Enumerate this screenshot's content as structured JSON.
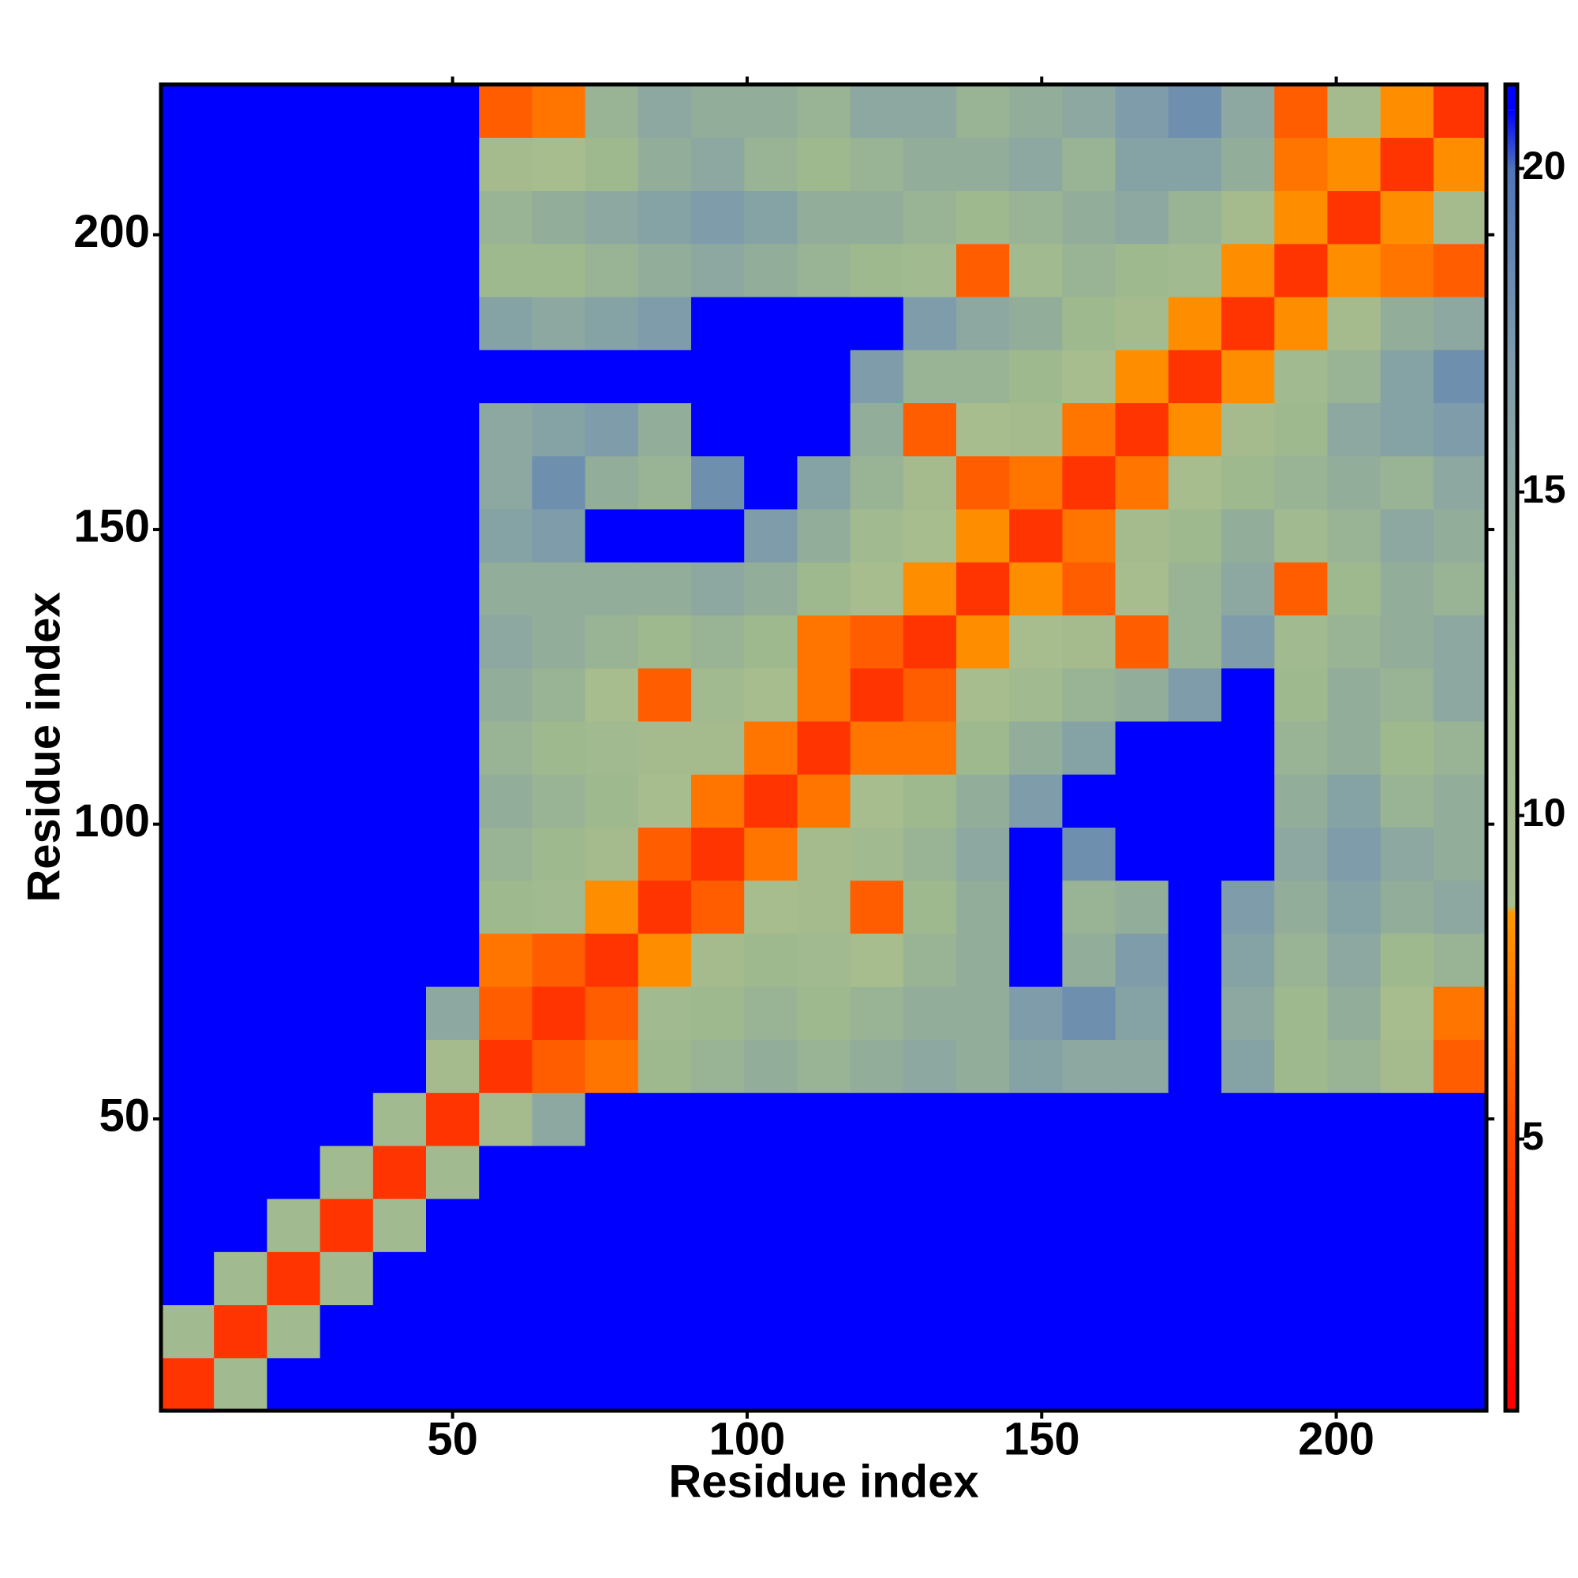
{
  "chart_data": {
    "type": "heatmap",
    "xlabel": "Residue index",
    "ylabel": "Residue index",
    "bins": [
      0.5,
      9.5,
      18.5,
      27.5,
      36.5,
      45.5,
      54.5,
      63.5,
      72.5,
      81.5,
      90.5,
      99.5,
      108.5,
      117.5,
      126.5,
      135.5,
      144.5,
      153.5,
      162.5,
      171.5,
      180.5,
      189.5,
      198.5,
      207.5,
      216.5,
      225.5
    ],
    "xlim": [
      0.5,
      225.5
    ],
    "ylim": [
      0.5,
      225.5
    ],
    "xticks": [
      50,
      100,
      150,
      200
    ],
    "yticks": [
      50,
      100,
      150,
      200
    ],
    "zlim": [
      0.8,
      21.3
    ],
    "zticks": [
      5,
      10,
      15,
      20
    ],
    "colorscale": [
      {
        "value": 1,
        "color": "#ff0000"
      },
      {
        "value": 5,
        "color": "#ff4500"
      },
      {
        "value": 8.5,
        "color": "#ff9900"
      },
      {
        "value": 8.6,
        "color": "#a9bd8e"
      },
      {
        "value": 12,
        "color": "#9fb98f"
      },
      {
        "value": 17,
        "color": "#7f9cab"
      },
      {
        "value": 20,
        "color": "#4f74b8"
      },
      {
        "value": 20.9,
        "color": "#0000ff"
      }
    ],
    "z": [
      [
        4,
        11,
        21,
        21,
        21,
        21,
        21,
        21,
        21,
        21,
        21,
        21,
        21,
        21,
        21,
        21,
        21,
        21,
        21,
        21,
        21,
        21,
        21,
        21,
        21
      ],
      [
        11,
        4,
        11,
        21,
        21,
        21,
        21,
        21,
        21,
        21,
        21,
        21,
        21,
        21,
        21,
        21,
        21,
        21,
        21,
        21,
        21,
        21,
        21,
        21,
        21
      ],
      [
        21,
        11,
        4,
        11,
        21,
        21,
        21,
        21,
        21,
        21,
        21,
        21,
        21,
        21,
        21,
        21,
        21,
        21,
        21,
        21,
        21,
        21,
        21,
        21,
        21
      ],
      [
        21,
        21,
        11,
        4,
        11,
        21,
        21,
        21,
        21,
        21,
        21,
        21,
        21,
        21,
        21,
        21,
        21,
        21,
        21,
        21,
        21,
        21,
        21,
        21,
        21
      ],
      [
        21,
        21,
        21,
        11,
        4,
        11,
        21,
        21,
        21,
        21,
        21,
        21,
        21,
        21,
        21,
        21,
        21,
        21,
        21,
        21,
        21,
        21,
        21,
        21,
        21
      ],
      [
        21,
        21,
        21,
        21,
        11,
        4,
        10,
        15,
        21,
        21,
        21,
        21,
        21,
        21,
        21,
        21,
        21,
        21,
        21,
        21,
        21,
        21,
        21,
        21,
        21
      ],
      [
        21,
        21,
        21,
        21,
        21,
        10,
        4,
        6,
        7,
        12,
        13,
        14,
        13,
        14,
        15,
        14,
        16,
        15,
        15,
        21,
        16,
        12,
        13,
        10,
        6
      ],
      [
        21,
        21,
        21,
        21,
        21,
        15,
        6,
        4,
        6,
        11,
        12,
        13,
        12,
        13,
        14,
        14,
        17,
        18,
        16,
        21,
        15,
        12,
        14,
        9,
        7
      ],
      [
        21,
        21,
        21,
        21,
        21,
        21,
        7,
        6,
        4,
        8,
        10,
        12,
        11,
        9,
        13,
        14,
        21,
        14,
        17,
        21,
        16,
        13,
        15,
        12,
        13
      ],
      [
        21,
        21,
        21,
        21,
        21,
        21,
        12,
        11,
        8,
        4,
        6,
        9,
        10,
        6,
        12,
        14,
        21,
        13,
        14,
        21,
        17,
        14,
        16,
        14,
        15
      ],
      [
        21,
        21,
        21,
        21,
        21,
        21,
        13,
        12,
        10,
        6,
        4,
        7,
        10,
        11,
        13,
        15,
        21,
        18,
        21,
        21,
        21,
        15,
        17,
        15,
        14
      ],
      [
        21,
        21,
        21,
        21,
        21,
        21,
        14,
        13,
        12,
        9,
        7,
        4,
        7,
        9,
        12,
        14,
        17,
        21,
        21,
        21,
        21,
        14,
        16,
        13,
        14
      ],
      [
        21,
        21,
        21,
        21,
        21,
        21,
        13,
        12,
        11,
        10,
        10,
        7,
        4,
        7,
        7,
        12,
        14,
        16,
        21,
        21,
        21,
        13,
        14,
        12,
        13
      ],
      [
        21,
        21,
        21,
        21,
        21,
        21,
        14,
        13,
        9,
        6,
        11,
        9,
        7,
        4,
        6,
        9,
        11,
        13,
        14,
        17,
        21,
        12,
        14,
        13,
        15
      ],
      [
        21,
        21,
        21,
        21,
        21,
        21,
        15,
        14,
        13,
        12,
        13,
        12,
        7,
        6,
        4,
        8,
        9,
        10,
        6,
        13,
        17,
        11,
        13,
        14,
        15
      ],
      [
        21,
        21,
        21,
        21,
        21,
        21,
        14,
        14,
        14,
        14,
        15,
        14,
        12,
        9,
        8,
        4,
        8,
        6,
        9,
        13,
        15,
        6,
        12,
        14,
        13
      ],
      [
        21,
        21,
        21,
        21,
        21,
        21,
        16,
        17,
        21,
        21,
        21,
        17,
        14,
        11,
        9,
        8,
        4,
        7,
        10,
        12,
        14,
        11,
        13,
        15,
        14
      ],
      [
        21,
        21,
        21,
        21,
        21,
        21,
        15,
        18,
        14,
        13,
        18,
        21,
        16,
        13,
        10,
        6,
        7,
        4,
        7,
        9,
        12,
        13,
        14,
        13,
        15
      ],
      [
        21,
        21,
        21,
        21,
        21,
        21,
        15,
        16,
        17,
        14,
        21,
        21,
        21,
        14,
        6,
        9,
        10,
        7,
        4,
        8,
        10,
        12,
        15,
        16,
        17
      ],
      [
        21,
        21,
        21,
        21,
        21,
        21,
        21,
        21,
        21,
        21,
        21,
        21,
        21,
        17,
        13,
        13,
        12,
        9,
        8,
        4,
        8,
        11,
        13,
        16,
        18
      ],
      [
        21,
        21,
        21,
        21,
        21,
        21,
        16,
        15,
        16,
        17,
        21,
        21,
        21,
        21,
        17,
        15,
        14,
        12,
        10,
        8,
        4,
        8,
        10,
        14,
        15
      ],
      [
        21,
        21,
        21,
        21,
        21,
        21,
        12,
        12,
        13,
        14,
        15,
        14,
        13,
        12,
        11,
        6,
        11,
        13,
        12,
        11,
        8,
        4,
        8,
        7,
        6
      ],
      [
        21,
        21,
        21,
        21,
        21,
        21,
        13,
        14,
        15,
        16,
        17,
        16,
        14,
        14,
        13,
        12,
        13,
        14,
        15,
        13,
        10,
        8,
        4,
        8,
        10
      ],
      [
        21,
        21,
        21,
        21,
        21,
        21,
        10,
        9,
        12,
        14,
        15,
        13,
        12,
        13,
        14,
        14,
        15,
        13,
        16,
        16,
        14,
        7,
        8,
        4,
        8
      ],
      [
        21,
        21,
        21,
        21,
        21,
        21,
        6,
        7,
        13,
        15,
        14,
        14,
        13,
        15,
        15,
        13,
        14,
        15,
        17,
        18,
        15,
        6,
        10,
        8,
        4
      ]
    ]
  }
}
